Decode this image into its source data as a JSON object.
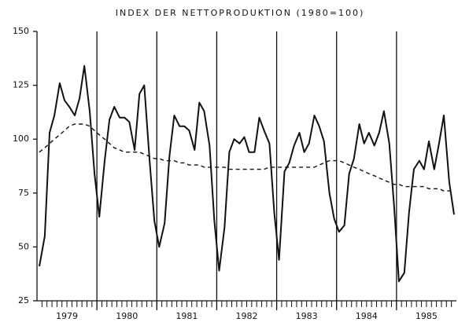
{
  "chart_data": {
    "type": "line",
    "title": "INDEX DER NETTOPRODUKTION (1980=100)",
    "x": [
      1979.04,
      1979.13,
      1979.21,
      1979.29,
      1979.38,
      1979.46,
      1979.54,
      1979.63,
      1979.71,
      1979.79,
      1979.88,
      1979.96,
      1980.04,
      1980.13,
      1980.21,
      1980.29,
      1980.38,
      1980.46,
      1980.54,
      1980.63,
      1980.71,
      1980.79,
      1980.88,
      1980.96,
      1981.04,
      1981.13,
      1981.21,
      1981.29,
      1981.38,
      1981.46,
      1981.54,
      1981.63,
      1981.71,
      1981.79,
      1981.88,
      1981.96,
      1982.04,
      1982.13,
      1982.21,
      1982.29,
      1982.38,
      1982.46,
      1982.54,
      1982.63,
      1982.71,
      1982.79,
      1982.88,
      1982.96,
      1983.04,
      1983.13,
      1983.21,
      1983.29,
      1983.38,
      1983.46,
      1983.54,
      1983.63,
      1983.71,
      1983.79,
      1983.88,
      1983.96,
      1984.04,
      1984.13,
      1984.21,
      1984.29,
      1984.38,
      1984.46,
      1984.54,
      1984.63,
      1984.71,
      1984.79,
      1984.88,
      1984.96,
      1985.04,
      1985.13,
      1985.21,
      1985.29,
      1985.38,
      1985.46,
      1985.54,
      1985.63,
      1985.71,
      1985.79,
      1985.88,
      1985.96
    ],
    "series": [
      {
        "color": "#111",
        "dash": false,
        "values": [
          41,
          55,
          103,
          111,
          126,
          118,
          115,
          111,
          119,
          134,
          113,
          84,
          64,
          90,
          109,
          115,
          110,
          110,
          108,
          95,
          121,
          125,
          90,
          62,
          50,
          61,
          92,
          111,
          106,
          106,
          104,
          95,
          117,
          113,
          97,
          62,
          39,
          59,
          94,
          100,
          98,
          101,
          94,
          94,
          110,
          104,
          98,
          66,
          44,
          85,
          89,
          97,
          103,
          94,
          98,
          111,
          106,
          99,
          75,
          63,
          57,
          60,
          84,
          91,
          107,
          98,
          103,
          97,
          103,
          113,
          98,
          69,
          34,
          38,
          66,
          86,
          90,
          86,
          99,
          86,
          98,
          111,
          80,
          65
        ]
      },
      {
        "color": "#111",
        "dash": true,
        "values": [
          94,
          96,
          98,
          100,
          102,
          104,
          106,
          107,
          107,
          107,
          106,
          104,
          102,
          100,
          98,
          96,
          95,
          94,
          94,
          94,
          94,
          93,
          92,
          91,
          91,
          90,
          90,
          90,
          89,
          89,
          88,
          88,
          88,
          87,
          87,
          87,
          87,
          87,
          86,
          86,
          86,
          86,
          86,
          86,
          86,
          86,
          87,
          87,
          87,
          87,
          87,
          87,
          87,
          87,
          87,
          87,
          88,
          89,
          90,
          90,
          90,
          89,
          88,
          87,
          86,
          85,
          84,
          83,
          82,
          81,
          80,
          79,
          79,
          78,
          78,
          78,
          78,
          78,
          77,
          77,
          77,
          76,
          76,
          76
        ]
      }
    ],
    "xlim": [
      1979,
      1986
    ],
    "xticks": [
      {
        "value": 1979.5,
        "label": "1979"
      },
      {
        "value": 1980.5,
        "label": "1980"
      },
      {
        "value": 1981.5,
        "label": "1981"
      },
      {
        "value": 1982.5,
        "label": "1982"
      },
      {
        "value": 1983.5,
        "label": "1983"
      },
      {
        "value": 1984.5,
        "label": "1984"
      },
      {
        "value": 1985.5,
        "label": "1985"
      }
    ],
    "xgrid": [
      1980,
      1981,
      1982,
      1983,
      1984,
      1985
    ],
    "ylim": [
      25,
      150
    ],
    "yticks": [
      25,
      50,
      75,
      100,
      125,
      150
    ]
  }
}
